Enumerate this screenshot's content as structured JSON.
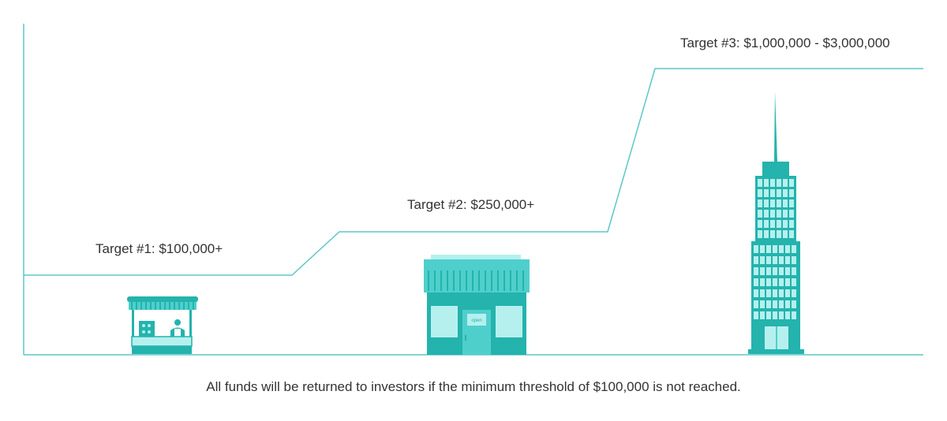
{
  "colors": {
    "line": "#5cc7c7",
    "teal_dark": "#24b3ad",
    "teal_mid": "#4fcfcc",
    "teal_light": "#b5f0ee",
    "text": "#333333"
  },
  "targets": [
    {
      "label": "Target #1: $100,000+",
      "illustration": "market-stall-icon"
    },
    {
      "label": "Target #2: $250,000+",
      "illustration": "storefront-icon",
      "sign": "open"
    },
    {
      "label": "Target #3: $1,000,000 - $3,000,000",
      "illustration": "skyscraper-icon"
    }
  ],
  "footnote": "All funds will be returned to investors if the minimum threshold of $100,000 is not reached."
}
